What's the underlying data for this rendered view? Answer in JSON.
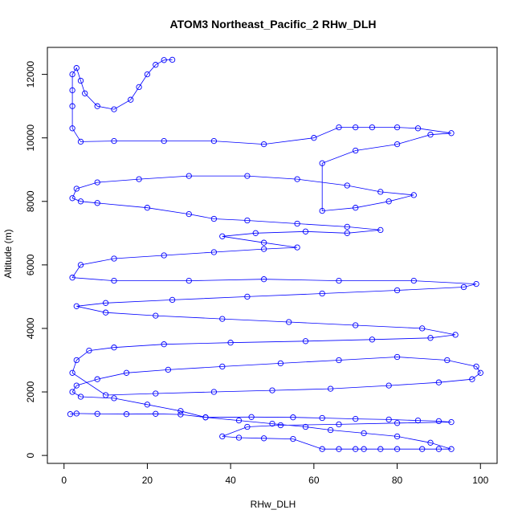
{
  "chart_data": {
    "type": "scatter",
    "title": "ATOM3 Northeast_Pacific_2 RHw_DLH",
    "xlabel": "RHw_DLH",
    "ylabel": "Altitude (m)",
    "xlim": [
      -4,
      104
    ],
    "ylim": [
      -250,
      12850
    ],
    "x_ticks": [
      0,
      20,
      40,
      60,
      80,
      100
    ],
    "y_ticks": [
      0,
      2000,
      4000,
      6000,
      8000,
      10000,
      12000
    ],
    "grid": false,
    "legend": "none",
    "marker": "open-circle",
    "connected": true,
    "color": "#0000ff",
    "series": [
      {
        "values": [
          [
            1.5,
            1300
          ],
          [
            3,
            1320
          ],
          [
            8,
            1310
          ],
          [
            15,
            1300
          ],
          [
            22,
            1310
          ],
          [
            28,
            1290
          ],
          [
            34,
            1200
          ],
          [
            45,
            1210
          ],
          [
            55,
            1200
          ],
          [
            62,
            1180
          ],
          [
            70,
            1150
          ],
          [
            78,
            1130
          ],
          [
            85,
            1100
          ],
          [
            90,
            1080
          ],
          [
            93,
            1050
          ],
          [
            80,
            1020
          ],
          [
            66,
            980
          ],
          [
            52,
            950
          ],
          [
            44,
            900
          ],
          [
            38,
            600
          ],
          [
            42,
            560
          ],
          [
            48,
            540
          ],
          [
            55,
            520
          ],
          [
            62,
            200
          ],
          [
            66,
            200
          ],
          [
            70,
            200
          ],
          [
            72,
            200
          ],
          [
            76,
            200
          ],
          [
            80,
            200
          ],
          [
            86,
            200
          ],
          [
            90,
            200
          ],
          [
            93,
            200
          ],
          [
            88,
            400
          ],
          [
            80,
            600
          ],
          [
            72,
            700
          ],
          [
            64,
            800
          ],
          [
            58,
            900
          ],
          [
            50,
            1000
          ],
          [
            42,
            1100
          ],
          [
            34,
            1200
          ],
          [
            28,
            1400
          ],
          [
            20,
            1600
          ],
          [
            12,
            1800
          ],
          [
            4,
            1850
          ],
          [
            2,
            2000
          ],
          [
            3,
            2200
          ],
          [
            8,
            2400
          ],
          [
            15,
            2600
          ],
          [
            25,
            2700
          ],
          [
            38,
            2800
          ],
          [
            52,
            2900
          ],
          [
            66,
            3000
          ],
          [
            80,
            3100
          ],
          [
            92,
            3000
          ],
          [
            99,
            2800
          ],
          [
            100,
            2600
          ],
          [
            98,
            2400
          ],
          [
            90,
            2300
          ],
          [
            78,
            2200
          ],
          [
            64,
            2100
          ],
          [
            50,
            2050
          ],
          [
            36,
            2000
          ],
          [
            22,
            1950
          ],
          [
            10,
            1900
          ],
          [
            2,
            2600
          ],
          [
            3,
            3000
          ],
          [
            6,
            3300
          ],
          [
            12,
            3400
          ],
          [
            24,
            3500
          ],
          [
            40,
            3550
          ],
          [
            58,
            3600
          ],
          [
            74,
            3650
          ],
          [
            88,
            3700
          ],
          [
            94,
            3800
          ],
          [
            86,
            4000
          ],
          [
            70,
            4100
          ],
          [
            54,
            4200
          ],
          [
            38,
            4300
          ],
          [
            22,
            4400
          ],
          [
            10,
            4500
          ],
          [
            3,
            4700
          ],
          [
            10,
            4800
          ],
          [
            26,
            4900
          ],
          [
            44,
            5000
          ],
          [
            62,
            5100
          ],
          [
            80,
            5200
          ],
          [
            96,
            5300
          ],
          [
            99,
            5400
          ],
          [
            84,
            5500
          ],
          [
            66,
            5500
          ],
          [
            48,
            5550
          ],
          [
            30,
            5500
          ],
          [
            12,
            5500
          ],
          [
            2,
            5600
          ],
          [
            4,
            6000
          ],
          [
            12,
            6200
          ],
          [
            24,
            6300
          ],
          [
            36,
            6400
          ],
          [
            48,
            6500
          ],
          [
            56,
            6550
          ],
          [
            48,
            6700
          ],
          [
            38,
            6900
          ],
          [
            46,
            7000
          ],
          [
            58,
            7050
          ],
          [
            68,
            7000
          ],
          [
            76,
            7100
          ],
          [
            68,
            7200
          ],
          [
            56,
            7300
          ],
          [
            44,
            7400
          ],
          [
            36,
            7450
          ],
          [
            30,
            7600
          ],
          [
            20,
            7800
          ],
          [
            8,
            7950
          ],
          [
            4,
            8000
          ],
          [
            2,
            8100
          ],
          [
            3,
            8400
          ],
          [
            8,
            8600
          ],
          [
            18,
            8700
          ],
          [
            30,
            8800
          ],
          [
            44,
            8800
          ],
          [
            56,
            8700
          ],
          [
            68,
            8500
          ],
          [
            76,
            8300
          ],
          [
            84,
            8200
          ],
          [
            78,
            8000
          ],
          [
            70,
            7800
          ],
          [
            62,
            7700
          ],
          [
            62,
            9200
          ],
          [
            70,
            9600
          ],
          [
            80,
            9800
          ],
          [
            88,
            10100
          ],
          [
            93,
            10150
          ],
          [
            85,
            10300
          ],
          [
            80,
            10330
          ],
          [
            74,
            10330
          ],
          [
            70,
            10330
          ],
          [
            66,
            10330
          ],
          [
            60,
            10000
          ],
          [
            48,
            9800
          ],
          [
            36,
            9900
          ],
          [
            24,
            9900
          ],
          [
            12,
            9900
          ],
          [
            4,
            9880
          ],
          [
            2,
            10300
          ],
          [
            2,
            11000
          ],
          [
            2,
            11500
          ],
          [
            2,
            12000
          ],
          [
            3,
            12200
          ],
          [
            4,
            11800
          ],
          [
            5,
            11400
          ],
          [
            8,
            11000
          ],
          [
            12,
            10900
          ],
          [
            16,
            11200
          ],
          [
            18,
            11600
          ],
          [
            20,
            12000
          ],
          [
            22,
            12300
          ],
          [
            24,
            12450
          ],
          [
            26,
            12460
          ]
        ]
      }
    ]
  }
}
